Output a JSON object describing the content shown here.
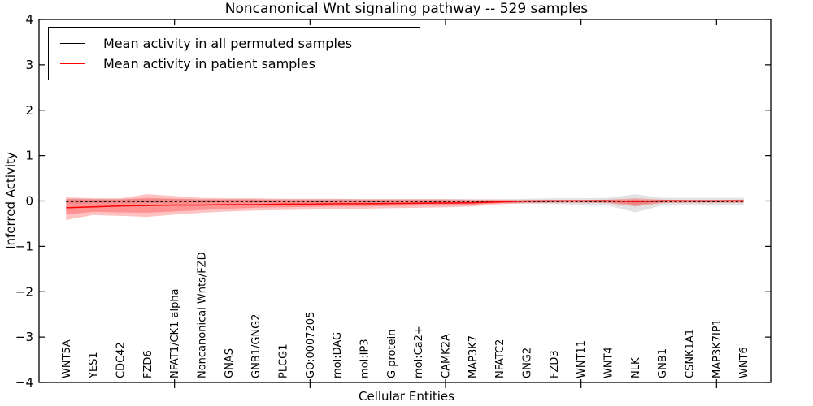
{
  "figure": {
    "title": "Noncanonical Wnt signaling pathway -- 529 samples",
    "xlabel": "Cellular Entities",
    "ylabel": "Inferred Activity"
  },
  "legend": {
    "position": "upper left",
    "items": [
      {
        "label": "Mean activity in all permuted samples",
        "color": "#000000"
      },
      {
        "label": "Mean activity in patient samples",
        "color": "#ff0000"
      }
    ]
  },
  "chart_data": {
    "type": "line",
    "title": "Noncanonical Wnt signaling pathway -- 529 samples",
    "xlabel": "Cellular Entities",
    "ylabel": "Inferred Activity",
    "ylim": [
      -4,
      4
    ],
    "yticks": [
      -4,
      -3,
      -2,
      -1,
      0,
      1,
      2,
      3,
      4
    ],
    "xlim": [
      0,
      27
    ],
    "xtick_positions": [
      5,
      10,
      15,
      20,
      25
    ],
    "grid": false,
    "legend_position": "upper left",
    "categories": [
      "WNT5A",
      "YES1",
      "CDC42",
      "FZD6",
      "NFAT1/CK1 alpha",
      "Noncanonical Wnts/FZD",
      "GNAS",
      "GNB1/GNG2",
      "PLCG1",
      "GO:0007205",
      "mol:DAG",
      "mol:IP3",
      "G protein",
      "mol:Ca2+",
      "CAMK2A",
      "MAP3K7",
      "NFATC2",
      "GNG2",
      "FZD3",
      "WNT11",
      "WNT4",
      "NLK",
      "GNB1",
      "CSNK1A1",
      "MAP3K7IP1",
      "WNT6"
    ],
    "series": [
      {
        "name": "Mean activity in all permuted samples",
        "color": "#000000",
        "style": "dashed",
        "values": [
          -0.01,
          -0.01,
          -0.01,
          -0.01,
          -0.01,
          -0.01,
          -0.01,
          -0.01,
          -0.01,
          -0.01,
          -0.01,
          -0.01,
          -0.01,
          -0.01,
          -0.01,
          -0.01,
          -0.01,
          -0.01,
          -0.01,
          -0.01,
          -0.01,
          -0.01,
          -0.01,
          -0.01,
          -0.01,
          -0.01
        ]
      },
      {
        "name": "Mean activity in patient samples",
        "color": "#ff0000",
        "style": "solid",
        "values": [
          -0.15,
          -0.13,
          -0.11,
          -0.1,
          -0.09,
          -0.09,
          -0.08,
          -0.08,
          -0.07,
          -0.07,
          -0.06,
          -0.06,
          -0.055,
          -0.05,
          -0.045,
          -0.04,
          -0.02,
          0.0,
          0.005,
          0.005,
          0.005,
          -0.01,
          0.005,
          0.005,
          0.005,
          0.005
        ]
      }
    ],
    "bands": [
      {
        "name": "permuted-band",
        "color": "rgba(110,110,110,0.20)",
        "top": [
          0.05,
          0.05,
          0.04,
          0.04,
          0.04,
          0.04,
          0.04,
          0.04,
          0.04,
          0.04,
          0.04,
          0.04,
          0.04,
          0.04,
          0.04,
          0.04,
          0.04,
          0.05,
          0.06,
          0.06,
          0.07,
          0.15,
          0.07,
          0.07,
          0.07,
          0.07
        ],
        "bottom": [
          -0.06,
          -0.05,
          -0.05,
          -0.05,
          -0.05,
          -0.04,
          -0.04,
          -0.04,
          -0.04,
          -0.04,
          -0.04,
          -0.04,
          -0.04,
          -0.04,
          -0.04,
          -0.04,
          -0.05,
          -0.06,
          -0.07,
          -0.08,
          -0.1,
          -0.25,
          -0.1,
          -0.1,
          -0.1,
          -0.09
        ]
      },
      {
        "name": "patient-band-outer",
        "color": "rgba(255,0,0,0.24)",
        "top": [
          0.08,
          0.06,
          0.06,
          0.15,
          0.11,
          0.07,
          0.06,
          0.06,
          0.05,
          0.05,
          0.05,
          0.04,
          0.04,
          0.04,
          0.04,
          0.03,
          0.03,
          0.02,
          0.02,
          0.02,
          0.03,
          0.06,
          0.03,
          0.02,
          0.02,
          0.03
        ],
        "bottom": [
          -0.42,
          -0.31,
          -0.33,
          -0.35,
          -0.3,
          -0.26,
          -0.23,
          -0.21,
          -0.2,
          -0.19,
          -0.18,
          -0.17,
          -0.16,
          -0.15,
          -0.14,
          -0.12,
          -0.07,
          -0.05,
          -0.04,
          -0.04,
          -0.05,
          -0.12,
          -0.05,
          -0.04,
          -0.04,
          -0.04
        ]
      },
      {
        "name": "patient-band-inner",
        "color": "rgba(255,0,0,0.24)",
        "top": [
          0.04,
          0.03,
          0.03,
          0.07,
          0.05,
          0.03,
          0.03,
          0.03,
          0.02,
          0.02,
          0.02,
          0.02,
          0.02,
          0.02,
          0.02,
          0.01,
          0.01,
          0.01,
          0.01,
          0.01,
          0.01,
          0.03,
          0.01,
          0.01,
          0.01,
          0.01
        ],
        "bottom": [
          -0.3,
          -0.24,
          -0.25,
          -0.26,
          -0.23,
          -0.2,
          -0.17,
          -0.15,
          -0.14,
          -0.13,
          -0.12,
          -0.12,
          -0.11,
          -0.1,
          -0.1,
          -0.08,
          -0.05,
          -0.03,
          -0.03,
          -0.03,
          -0.03,
          -0.08,
          -0.03,
          -0.03,
          -0.03,
          -0.03
        ]
      }
    ]
  }
}
